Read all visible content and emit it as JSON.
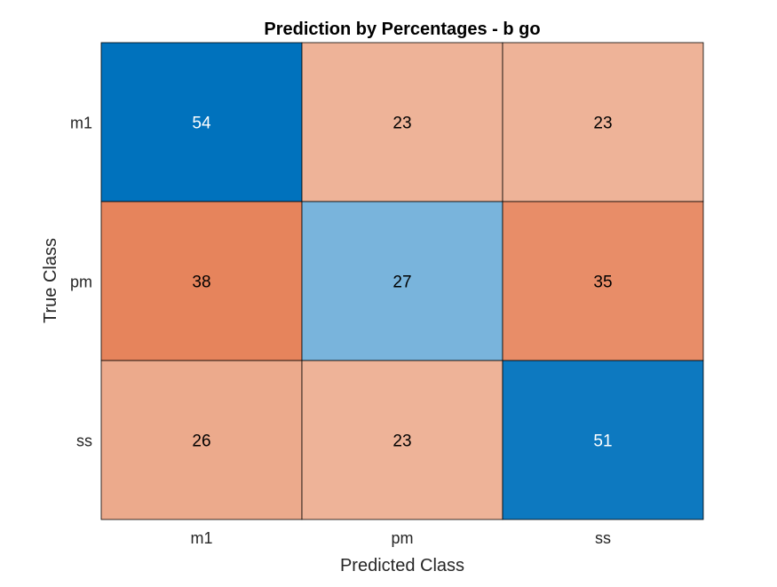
{
  "chart_data": {
    "type": "heatmap",
    "title": "Prediction by Percentages - b go",
    "xlabel": "Predicted Class",
    "ylabel": "True Class",
    "x_categories": [
      "m1",
      "pm",
      "ss"
    ],
    "y_categories": [
      "m1",
      "pm",
      "ss"
    ],
    "values": [
      [
        54,
        23,
        23
      ],
      [
        38,
        27,
        35
      ],
      [
        26,
        23,
        51
      ]
    ],
    "grid": true,
    "colors": {
      "diagonal_high": "#0072BD",
      "diagonal_light": "#79B4DC",
      "off_diagonal_light": "#EEB398",
      "off_diagonal_dark": "#E6845C",
      "cell_border": "#000000",
      "dark_cell_text": "#FFFFFF",
      "light_cell_text": "#000000"
    }
  }
}
